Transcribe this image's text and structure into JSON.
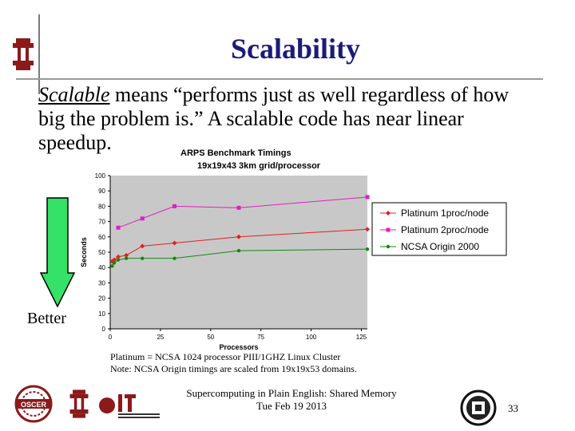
{
  "slide": {
    "title": "Scalability",
    "body_term": "Scalable",
    "body_rest": " means “performs just as well regardless of how big the problem is.” A scalable code has near linear speedup.",
    "better_label": "Better",
    "footnote_line1": "Platinum = NCSA 1024 processor PIII/1GHZ Linux Cluster",
    "footnote_line2": "Note: NCSA Origin timings are scaled from 19x19x53 domains.",
    "footer_line1": "Supercomputing in Plain English: Shared Memory",
    "footer_line2": "Tue Feb 19 2013",
    "page_number": "33",
    "colors": {
      "title": "#1b1b7a",
      "arrow_fill": "#33e266",
      "plot_bg": "#c8c8c8"
    },
    "logos": [
      "ou-logo-icon",
      "oscer-logo-icon",
      "ou-it-logo-icon",
      "seal-logo-icon"
    ]
  },
  "chart_data": {
    "type": "line",
    "title": "ARPS Benchmark Timings",
    "subtitle": "19x19x43 3km grid/processor",
    "xlabel": "Processors",
    "ylabel": "Seconds",
    "xlim": [
      0,
      128
    ],
    "ylim": [
      0,
      100
    ],
    "x_ticks": [
      "0",
      "25",
      "50",
      "75",
      "100",
      "125"
    ],
    "y_ticks": [
      "0",
      "10",
      "20",
      "30",
      "40",
      "50",
      "60",
      "70",
      "80",
      "90",
      "100"
    ],
    "legend_position": "right",
    "series": [
      {
        "name": "Platinum 1proc/node",
        "color": "#e02020",
        "marker": "diamond",
        "x": [
          1,
          2,
          4,
          8,
          16,
          32,
          64,
          128
        ],
        "y": [
          44,
          45,
          47,
          48,
          54,
          56,
          60,
          65
        ]
      },
      {
        "name": "Platinum 2proc/node",
        "color": "#e020c0",
        "marker": "square",
        "x": [
          4,
          16,
          32,
          64,
          128
        ],
        "y": [
          66,
          72,
          80,
          79,
          86
        ]
      },
      {
        "name": "NCSA Origin 2000",
        "color": "#108a10",
        "marker": "circle",
        "x": [
          1,
          2,
          4,
          8,
          16,
          32,
          64,
          128
        ],
        "y": [
          41,
          43,
          45,
          46,
          46,
          46,
          51,
          52
        ]
      }
    ]
  }
}
